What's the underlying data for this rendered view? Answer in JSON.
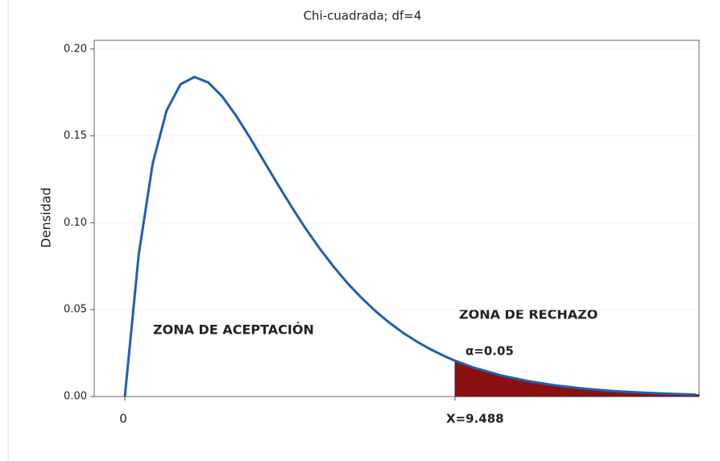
{
  "chart_data": {
    "type": "line",
    "title": "Chi-cuadrada; df=4",
    "y_label": "Densidad",
    "x": [
      0,
      0.4,
      0.8,
      1.2,
      1.6,
      2.0,
      2.4,
      2.8,
      3.2,
      3.6,
      4.0,
      4.4,
      4.8,
      5.2,
      5.6,
      6.0,
      6.4,
      6.8,
      7.2,
      7.6,
      8.0,
      8.4,
      8.8,
      9.2,
      9.488,
      10.0,
      10.8,
      11.6,
      12.4,
      13.2,
      14.0,
      14.8,
      15.6,
      16.4
    ],
    "series": [
      {
        "name": "Chi-cuadrada",
        "color": "#1f5fb0",
        "values": [
          0,
          0.0819,
          0.1341,
          0.1646,
          0.1797,
          0.1839,
          0.1807,
          0.1726,
          0.1615,
          0.1488,
          0.1353,
          0.1219,
          0.1089,
          0.0965,
          0.0851,
          0.0747,
          0.0652,
          0.0568,
          0.0492,
          0.0425,
          0.0366,
          0.0315,
          0.027,
          0.0231,
          0.0206,
          0.0168,
          0.0122,
          0.0088,
          0.0063,
          0.0045,
          0.0032,
          0.0023,
          0.0016,
          0.0011
        ]
      }
    ],
    "shade_color": "#8b1010",
    "xlim": [
      -0.88,
      16.5
    ],
    "ylim": [
      0,
      0.205
    ],
    "xticks": [
      0,
      {
        "value": 9.488,
        "label": "X=9.488"
      }
    ],
    "yticks": [
      {
        "value": 0,
        "label": "0.00"
      },
      {
        "value": 0.05,
        "label": "0.05"
      },
      {
        "value": 0.1,
        "label": "0.10"
      },
      {
        "value": 0.15,
        "label": "0.15"
      },
      {
        "value": 0.2,
        "label": "0.20"
      }
    ],
    "grid": true,
    "annotations": [
      "ZONA DE ACEPTACIÓN",
      "ZONA DE RECHAZO",
      "α=0.05"
    ]
  }
}
